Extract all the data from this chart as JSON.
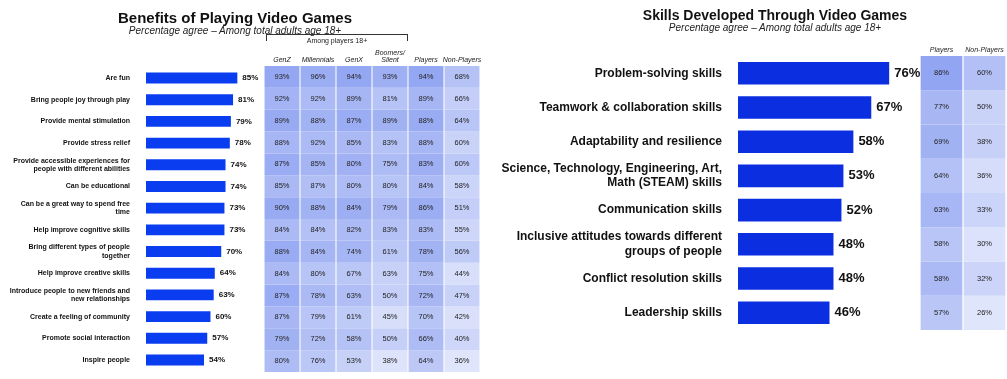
{
  "chart_data": [
    {
      "type": "bar",
      "orientation": "horizontal",
      "title": "Benefits of Playing Video Games",
      "subtitle": "Percentage agree – Among total adults age 18+",
      "categories": [
        "Are fun",
        "Bring people joy through play",
        "Provide mental stimulation",
        "Provide stress relief",
        "Provide accessible experiences for people with different abilities",
        "Can be educational",
        "Can be a great way to spend free time",
        "Help improve cognitive skills",
        "Bring different types of people together",
        "Help improve creative skills",
        "Introduce people to new friends and new relationships",
        "Create a feeling of community",
        "Promote social interaction",
        "Inspire people"
      ],
      "values": [
        85,
        81,
        79,
        78,
        74,
        74,
        73,
        73,
        70,
        64,
        63,
        60,
        57,
        54
      ],
      "value_labels": [
        "85%",
        "81%",
        "79%",
        "78%",
        "74%",
        "74%",
        "73%",
        "73%",
        "70%",
        "64%",
        "63%",
        "60%",
        "57%",
        "54%"
      ],
      "color": "#0a3cf0"
    },
    {
      "type": "heatmap",
      "categories": [
        "GenZ",
        "Millennials",
        "GenX",
        "Boomers/Silent",
        "Players",
        "Non-Players"
      ],
      "y_categories": [
        null,
        null,
        null,
        null,
        null,
        null,
        null,
        null,
        null,
        null,
        null,
        null,
        null,
        null
      ],
      "tick_labels": "x",
      "annotations": [
        "Among players 18+"
      ],
      "cells": [
        [
          93,
          96,
          94,
          93,
          94,
          68
        ],
        [
          92,
          92,
          89,
          81,
          89,
          66
        ],
        [
          89,
          88,
          87,
          89,
          88,
          64
        ],
        [
          88,
          92,
          85,
          83,
          88,
          60
        ],
        [
          87,
          85,
          80,
          75,
          83,
          60
        ],
        [
          85,
          87,
          80,
          80,
          84,
          58
        ],
        [
          90,
          88,
          84,
          79,
          86,
          51
        ],
        [
          84,
          84,
          82,
          83,
          83,
          55
        ],
        [
          88,
          84,
          74,
          61,
          78,
          56
        ],
        [
          84,
          80,
          67,
          63,
          75,
          44
        ],
        [
          87,
          78,
          63,
          50,
          72,
          47
        ],
        [
          87,
          79,
          61,
          45,
          70,
          42
        ],
        [
          79,
          72,
          58,
          50,
          66,
          40
        ],
        [
          80,
          76,
          53,
          38,
          64,
          36
        ]
      ],
      "cell_labels": [
        [
          "93%",
          "96%",
          "94%",
          "93%",
          "94%",
          "68%"
        ],
        [
          "92%",
          "92%",
          "89%",
          "81%",
          "89%",
          "66%"
        ],
        [
          "89%",
          "88%",
          "87%",
          "89%",
          "88%",
          "64%"
        ],
        [
          "88%",
          "92%",
          "85%",
          "83%",
          "88%",
          "60%"
        ],
        [
          "87%",
          "85%",
          "80%",
          "75%",
          "83%",
          "60%"
        ],
        [
          "85%",
          "87%",
          "80%",
          "80%",
          "84%",
          "58%"
        ],
        [
          "90%",
          "88%",
          "84%",
          "79%",
          "86%",
          "51%"
        ],
        [
          "84%",
          "84%",
          "82%",
          "83%",
          "83%",
          "55%"
        ],
        [
          "88%",
          "84%",
          "74%",
          "61%",
          "78%",
          "56%"
        ],
        [
          "84%",
          "80%",
          "67%",
          "63%",
          "75%",
          "44%"
        ],
        [
          "87%",
          "78%",
          "63%",
          "50%",
          "72%",
          "47%"
        ],
        [
          "87%",
          "79%",
          "61%",
          "45%",
          "70%",
          "42%"
        ],
        [
          "79%",
          "72%",
          "58%",
          "50%",
          "66%",
          "40%"
        ],
        [
          "80%",
          "76%",
          "53%",
          "38%",
          "64%",
          "36%"
        ]
      ]
    },
    {
      "type": "bar",
      "orientation": "horizontal",
      "title": "Skills Developed Through Video Games",
      "subtitle": "Percentage agree – Among total adults age 18+",
      "categories": [
        "Problem-solving skills",
        "Teamwork & collaboration skills",
        "Adaptability and resilience",
        "Science, Technology, Engineering, Art, Math (STEAM) skills",
        "Communication skills",
        "Inclusive attitudes towards different groups of people",
        "Conflict resolution skills",
        "Leadership skills"
      ],
      "values": [
        76,
        67,
        58,
        53,
        52,
        48,
        48,
        46
      ],
      "value_labels": [
        "76%",
        "67%",
        "58%",
        "53%",
        "52%",
        "48%",
        "48%",
        "46%"
      ],
      "color": "#0b2fe0"
    },
    {
      "type": "heatmap",
      "categories": [
        "Players",
        "Non-Players"
      ],
      "y_categories": [
        null,
        null,
        null,
        null,
        null,
        null,
        null,
        null
      ],
      "tick_labels": "x",
      "cells": [
        [
          86,
          60
        ],
        [
          77,
          50
        ],
        [
          69,
          38
        ],
        [
          64,
          36
        ],
        [
          63,
          33
        ],
        [
          58,
          30
        ],
        [
          58,
          32
        ],
        [
          57,
          26
        ]
      ],
      "cell_labels": [
        [
          "86%",
          "60%"
        ],
        [
          "77%",
          "50%"
        ],
        [
          "69%",
          "38%"
        ],
        [
          "64%",
          "36%"
        ],
        [
          "63%",
          "33%"
        ],
        [
          "58%",
          "30%"
        ],
        [
          "58%",
          "32%"
        ],
        [
          "57%",
          "26%"
        ]
      ]
    }
  ]
}
